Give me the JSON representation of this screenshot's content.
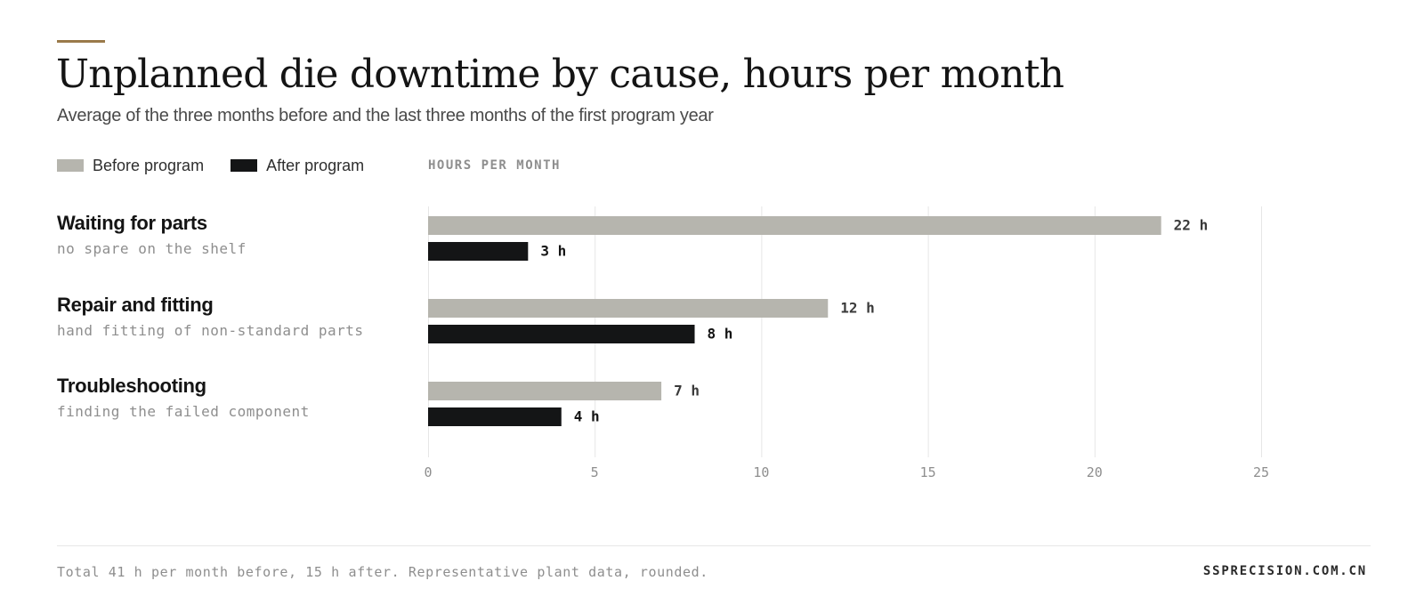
{
  "colors": {
    "accent": "#9a7a4a",
    "before": "#b6b5ae",
    "after": "#141516",
    "grid": "#e6e6e6",
    "muted": "#8e8e8e"
  },
  "header": {
    "title": "Unplanned die downtime by cause, hours per month",
    "subtitle": "Average of the three months before and the last three months of the first program year"
  },
  "legend": {
    "before_label": "Before program",
    "after_label": "After program",
    "units_label": "HOURS PER MONTH"
  },
  "chart_data": {
    "type": "bar",
    "orientation": "horizontal",
    "title": "Unplanned die downtime by cause, hours per month",
    "xlabel": "HOURS PER MONTH",
    "xlim": [
      0,
      25
    ],
    "xticks": [
      0,
      5,
      10,
      15,
      20,
      25
    ],
    "grid": true,
    "legend_position": "top-left",
    "categories": [
      "Waiting for parts",
      "Repair and fitting",
      "Troubleshooting"
    ],
    "category_notes": [
      "no spare on the shelf",
      "hand fitting of non-standard parts",
      "finding the failed component"
    ],
    "series": [
      {
        "name": "Before program",
        "values": [
          22,
          12,
          7
        ],
        "labels": [
          "22 h",
          "12 h",
          "7 h"
        ]
      },
      {
        "name": "After program",
        "values": [
          3,
          8,
          4
        ],
        "labels": [
          "3 h",
          "8 h",
          "4 h"
        ]
      }
    ]
  },
  "footer": {
    "note": "Total 41 h per month before, 15 h after. Representative plant data, rounded.",
    "source": "SSPRECISION.COM.CN"
  }
}
